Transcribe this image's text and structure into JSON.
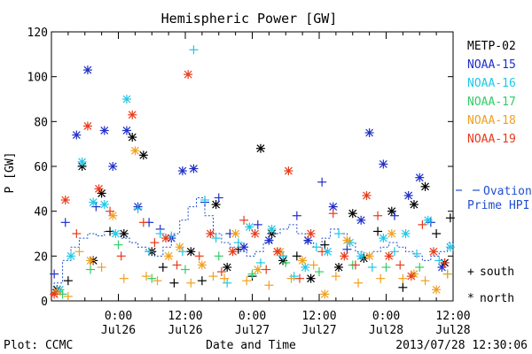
{
  "chart_data": {
    "type": "scatter",
    "title": "Hemispheric Power [GW]",
    "xlabel": "Date and Time",
    "ylabel": "P [GW]",
    "ylim": [
      0,
      120
    ],
    "yticks": [
      0,
      20,
      40,
      60,
      80,
      100,
      120
    ],
    "xlim": [
      "2013-07-25 12:00",
      "2013-07-28 12:00"
    ],
    "x_tick_times": [
      "2013-07-26 00:00",
      "2013-07-26 12:00",
      "2013-07-27 00:00",
      "2013-07-27 12:00",
      "2013-07-28 00:00",
      "2013-07-28 12:00"
    ],
    "xtick_labels": [
      {
        "time": "0:00",
        "date": "Jul26"
      },
      {
        "time": "12:00",
        "date": "Jul26"
      },
      {
        "time": "0:00",
        "date": "Jul27"
      },
      {
        "time": "12:00",
        "date": "Jul27"
      },
      {
        "time": "0:00",
        "date": "Jul28"
      },
      {
        "time": "12:00",
        "date": "Jul28"
      }
    ],
    "legend_position": "right",
    "grid": false,
    "footer_left": "Plot: CCMC",
    "footer_right": "2013/07/28 12:30:06",
    "marker_legend": [
      {
        "symbol": "+",
        "label": "south"
      },
      {
        "symbol": "*",
        "label": "north"
      }
    ],
    "ovation": {
      "label_line1": "Ovation",
      "label_line2": "Prime HPI",
      "color": "#1f4fd0",
      "x": [
        "2013-07-25 12:30",
        "2013-07-25 14:00",
        "2013-07-25 15:30",
        "2013-07-25 17:00",
        "2013-07-25 18:30",
        "2013-07-25 20:00",
        "2013-07-25 21:30",
        "2013-07-25 23:00",
        "2013-07-26 00:30",
        "2013-07-26 02:00",
        "2013-07-26 03:30",
        "2013-07-26 05:00",
        "2013-07-26 06:30",
        "2013-07-26 08:00",
        "2013-07-26 09:30",
        "2013-07-26 11:00",
        "2013-07-26 12:30",
        "2013-07-26 14:00",
        "2013-07-26 15:30",
        "2013-07-26 17:00",
        "2013-07-26 18:30",
        "2013-07-26 20:00",
        "2013-07-26 21:30",
        "2013-07-26 23:00",
        "2013-07-27 00:30",
        "2013-07-27 02:00",
        "2013-07-27 03:30",
        "2013-07-27 05:00",
        "2013-07-27 06:30",
        "2013-07-27 08:00",
        "2013-07-27 09:30",
        "2013-07-27 11:00",
        "2013-07-27 12:30",
        "2013-07-27 14:00",
        "2013-07-27 15:30",
        "2013-07-27 17:00",
        "2013-07-27 18:30",
        "2013-07-27 20:00",
        "2013-07-27 21:30",
        "2013-07-27 23:00",
        "2013-07-28 00:30",
        "2013-07-28 02:00",
        "2013-07-28 03:30",
        "2013-07-28 05:00",
        "2013-07-28 06:30",
        "2013-07-28 08:00",
        "2013-07-28 09:30",
        "2013-07-28 11:00",
        "2013-07-28 12:00"
      ],
      "y": [
        6,
        8,
        18,
        24,
        28,
        30,
        29,
        31,
        30,
        28,
        26,
        24,
        22,
        20,
        24,
        30,
        36,
        42,
        46,
        38,
        30,
        26,
        24,
        22,
        20,
        22,
        26,
        30,
        32,
        34,
        30,
        26,
        24,
        28,
        32,
        30,
        26,
        22,
        20,
        22,
        24,
        26,
        24,
        22,
        20,
        18,
        20,
        22,
        26
      ]
    },
    "series": [
      {
        "name": "METP-02",
        "color": "#000000",
        "x": [
          "2013-07-25 13:00",
          "2013-07-25 15:00",
          "2013-07-25 17:30",
          "2013-07-25 19:30",
          "2013-07-25 21:00",
          "2013-07-25 22:30",
          "2013-07-26 01:00",
          "2013-07-26 02:30",
          "2013-07-26 04:30",
          "2013-07-26 06:00",
          "2013-07-26 08:00",
          "2013-07-26 10:00",
          "2013-07-26 13:00",
          "2013-07-26 15:00",
          "2013-07-26 17:30",
          "2013-07-26 19:30",
          "2013-07-26 21:30",
          "2013-07-27 00:00",
          "2013-07-27 01:30",
          "2013-07-27 03:30",
          "2013-07-27 05:30",
          "2013-07-27 08:00",
          "2013-07-27 10:30",
          "2013-07-27 13:00",
          "2013-07-27 15:30",
          "2013-07-27 18:00",
          "2013-07-27 20:00",
          "2013-07-27 22:30",
          "2013-07-28 01:00",
          "2013-07-28 03:00",
          "2013-07-28 05:00",
          "2013-07-28 07:00",
          "2013-07-28 09:00",
          "2013-07-28 10:30",
          "2013-07-28 11:30"
        ],
        "y": [
          5,
          9,
          60,
          18,
          48,
          31,
          30,
          73,
          65,
          22,
          15,
          8,
          22,
          9,
          43,
          15,
          23,
          11,
          68,
          30,
          18,
          20,
          10,
          25,
          15,
          39,
          19,
          31,
          40,
          6,
          43,
          51,
          30,
          17,
          37
        ],
        "hemisphere": [
          "north",
          "south",
          "north",
          "north",
          "north",
          "south",
          "north",
          "north",
          "north",
          "north",
          "south",
          "south",
          "north",
          "south",
          "north",
          "north",
          "south",
          "south",
          "north",
          "north",
          "north",
          "south",
          "north",
          "south",
          "north",
          "north",
          "north",
          "south",
          "north",
          "south",
          "north",
          "north",
          "south",
          "north",
          "south"
        ]
      },
      {
        "name": "NOAA-15",
        "color": "#1f2fc8",
        "x": [
          "2013-07-25 12:30",
          "2013-07-25 14:30",
          "2013-07-25 16:30",
          "2013-07-25 18:30",
          "2013-07-25 20:00",
          "2013-07-25 21:30",
          "2013-07-25 23:00",
          "2013-07-26 01:30",
          "2013-07-26 03:30",
          "2013-07-26 05:30",
          "2013-07-26 07:30",
          "2013-07-26 09:30",
          "2013-07-26 11:30",
          "2013-07-26 13:30",
          "2013-07-26 15:30",
          "2013-07-26 18:00",
          "2013-07-26 20:00",
          "2013-07-26 22:30",
          "2013-07-27 01:00",
          "2013-07-27 03:00",
          "2013-07-27 05:30",
          "2013-07-27 08:00",
          "2013-07-27 10:00",
          "2013-07-27 12:30",
          "2013-07-27 14:30",
          "2013-07-27 17:00",
          "2013-07-27 19:30",
          "2013-07-27 21:00",
          "2013-07-27 23:30",
          "2013-07-28 01:30",
          "2013-07-28 04:00",
          "2013-07-28 06:00",
          "2013-07-28 08:00",
          "2013-07-28 10:00"
        ],
        "y": [
          12,
          35,
          74,
          103,
          42,
          76,
          60,
          76,
          42,
          35,
          32,
          28,
          58,
          59,
          44,
          46,
          30,
          24,
          34,
          27,
          20,
          38,
          27,
          53,
          42,
          23,
          36,
          75,
          61,
          38,
          47,
          55,
          35,
          15
        ],
        "hemisphere": [
          "south",
          "south",
          "north",
          "north",
          "south",
          "north",
          "north",
          "north",
          "north",
          "south",
          "south",
          "north",
          "north",
          "north",
          "south",
          "south",
          "south",
          "north",
          "south",
          "north",
          "south",
          "south",
          "north",
          "south",
          "north",
          "south",
          "north",
          "north",
          "north",
          "south",
          "north",
          "north",
          "south",
          "north"
        ]
      },
      {
        "name": "NOAA-16",
        "color": "#1ec8e8",
        "x": [
          "2013-07-25 13:30",
          "2013-07-25 15:30",
          "2013-07-25 17:30",
          "2013-07-25 19:30",
          "2013-07-25 21:30",
          "2013-07-25 23:30",
          "2013-07-26 01:30",
          "2013-07-26 03:30",
          "2013-07-26 05:30",
          "2013-07-26 07:30",
          "2013-07-26 09:30",
          "2013-07-26 11:30",
          "2013-07-26 13:30",
          "2013-07-26 15:30",
          "2013-07-26 17:30",
          "2013-07-26 19:30",
          "2013-07-26 21:30",
          "2013-07-26 23:30",
          "2013-07-27 01:30",
          "2013-07-27 03:30",
          "2013-07-27 05:30",
          "2013-07-27 07:30",
          "2013-07-27 09:30",
          "2013-07-27 11:30",
          "2013-07-27 13:30",
          "2013-07-27 15:30",
          "2013-07-27 17:30",
          "2013-07-27 19:30",
          "2013-07-27 21:30",
          "2013-07-27 23:30",
          "2013-07-28 01:30",
          "2013-07-28 03:30",
          "2013-07-28 05:30",
          "2013-07-28 07:30",
          "2013-07-28 09:30",
          "2013-07-28 11:30"
        ],
        "y": [
          5,
          20,
          62,
          44,
          43,
          30,
          90,
          41,
          22,
          30,
          29,
          22,
          112,
          45,
          28,
          8,
          26,
          33,
          17,
          32,
          20,
          11,
          15,
          24,
          22,
          30,
          26,
          20,
          15,
          28,
          22,
          30,
          21,
          36,
          18,
          24
        ],
        "hemisphere": [
          "north",
          "north",
          "north",
          "north",
          "north",
          "north",
          "north",
          "south",
          "south",
          "south",
          "south",
          "south",
          "south",
          "south",
          "south",
          "south",
          "south",
          "north",
          "south",
          "north",
          "south",
          "south",
          "north",
          "south",
          "north",
          "south",
          "north",
          "north",
          "south",
          "north",
          "south",
          "north",
          "south",
          "north",
          "south",
          "north"
        ]
      },
      {
        "name": "NOAA-17",
        "color": "#33cc66",
        "x": [
          "2013-07-25 14:00",
          "2013-07-25 19:00",
          "2013-07-26 00:00",
          "2013-07-26 06:00",
          "2013-07-26 12:00",
          "2013-07-26 18:00",
          "2013-07-27 00:00",
          "2013-07-27 06:00",
          "2013-07-27 12:00",
          "2013-07-27 18:00",
          "2013-07-28 00:00",
          "2013-07-28 06:00",
          "2013-07-28 11:00"
        ],
        "y": [
          3,
          14,
          25,
          10,
          14,
          20,
          12,
          17,
          13,
          16,
          15,
          15,
          12
        ],
        "hemisphere": [
          "south",
          "south",
          "south",
          "south",
          "south",
          "south",
          "south",
          "south",
          "south",
          "south",
          "south",
          "south",
          "south"
        ]
      },
      {
        "name": "NOAA-18",
        "color": "#f0a020",
        "x": [
          "2013-07-25 13:00",
          "2013-07-25 15:00",
          "2013-07-25 17:00",
          "2013-07-25 19:00",
          "2013-07-25 21:00",
          "2013-07-25 23:00",
          "2013-07-26 01:00",
          "2013-07-26 03:00",
          "2013-07-26 05:00",
          "2013-07-26 07:00",
          "2013-07-26 09:00",
          "2013-07-26 11:00",
          "2013-07-26 13:00",
          "2013-07-26 15:00",
          "2013-07-26 17:00",
          "2013-07-26 19:00",
          "2013-07-26 21:00",
          "2013-07-26 23:00",
          "2013-07-27 01:00",
          "2013-07-27 03:00",
          "2013-07-27 05:00",
          "2013-07-27 07:00",
          "2013-07-27 09:00",
          "2013-07-27 11:00",
          "2013-07-27 13:00",
          "2013-07-27 15:00",
          "2013-07-27 17:00",
          "2013-07-27 19:00",
          "2013-07-27 21:00",
          "2013-07-27 23:00",
          "2013-07-28 01:00",
          "2013-07-28 03:00",
          "2013-07-28 05:00",
          "2013-07-28 07:00",
          "2013-07-28 09:00",
          "2013-07-28 11:00"
        ],
        "y": [
          4,
          2,
          22,
          18,
          15,
          38,
          10,
          67,
          11,
          9,
          20,
          24,
          8,
          16,
          11,
          10,
          30,
          9,
          14,
          7,
          22,
          10,
          18,
          16,
          3,
          11,
          27,
          8,
          20,
          10,
          30,
          10,
          12,
          9,
          5,
          12
        ],
        "hemisphere": [
          "north",
          "south",
          "south",
          "north",
          "south",
          "north",
          "south",
          "north",
          "south",
          "south",
          "north",
          "north",
          "south",
          "north",
          "south",
          "south",
          "north",
          "south",
          "north",
          "south",
          "north",
          "south",
          "north",
          "south",
          "north",
          "south",
          "north",
          "south",
          "north",
          "south",
          "north",
          "south",
          "north",
          "south",
          "north",
          "south"
        ]
      },
      {
        "name": "NOAA-19",
        "color": "#e83a1a",
        "x": [
          "2013-07-25 12:30",
          "2013-07-25 14:30",
          "2013-07-25 16:30",
          "2013-07-25 18:30",
          "2013-07-25 20:30",
          "2013-07-25 22:30",
          "2013-07-26 00:30",
          "2013-07-26 02:30",
          "2013-07-26 04:30",
          "2013-07-26 06:30",
          "2013-07-26 08:30",
          "2013-07-26 10:30",
          "2013-07-26 12:30",
          "2013-07-26 14:30",
          "2013-07-26 16:30",
          "2013-07-26 18:30",
          "2013-07-26 20:30",
          "2013-07-26 22:30",
          "2013-07-27 00:30",
          "2013-07-27 02:30",
          "2013-07-27 04:30",
          "2013-07-27 06:30",
          "2013-07-27 08:30",
          "2013-07-27 10:30",
          "2013-07-27 12:30",
          "2013-07-27 14:30",
          "2013-07-27 16:30",
          "2013-07-27 18:30",
          "2013-07-27 20:30",
          "2013-07-27 22:30",
          "2013-07-28 00:30",
          "2013-07-28 02:30",
          "2013-07-28 04:30",
          "2013-07-28 06:30",
          "2013-07-28 08:30",
          "2013-07-28 10:30"
        ],
        "y": [
          3,
          45,
          30,
          78,
          50,
          40,
          20,
          83,
          35,
          26,
          28,
          16,
          101,
          20,
          30,
          13,
          22,
          36,
          30,
          14,
          22,
          58,
          10,
          30,
          22,
          39,
          20,
          16,
          47,
          38,
          20,
          16,
          11,
          34,
          22,
          17
        ],
        "hemisphere": [
          "north",
          "north",
          "south",
          "north",
          "north",
          "south",
          "south",
          "north",
          "south",
          "south",
          "north",
          "south",
          "north",
          "south",
          "north",
          "south",
          "north",
          "south",
          "north",
          "south",
          "north",
          "north",
          "south",
          "north",
          "south",
          "south",
          "north",
          "south",
          "north",
          "south",
          "north",
          "south",
          "north",
          "south",
          "north",
          "south"
        ]
      }
    ]
  }
}
